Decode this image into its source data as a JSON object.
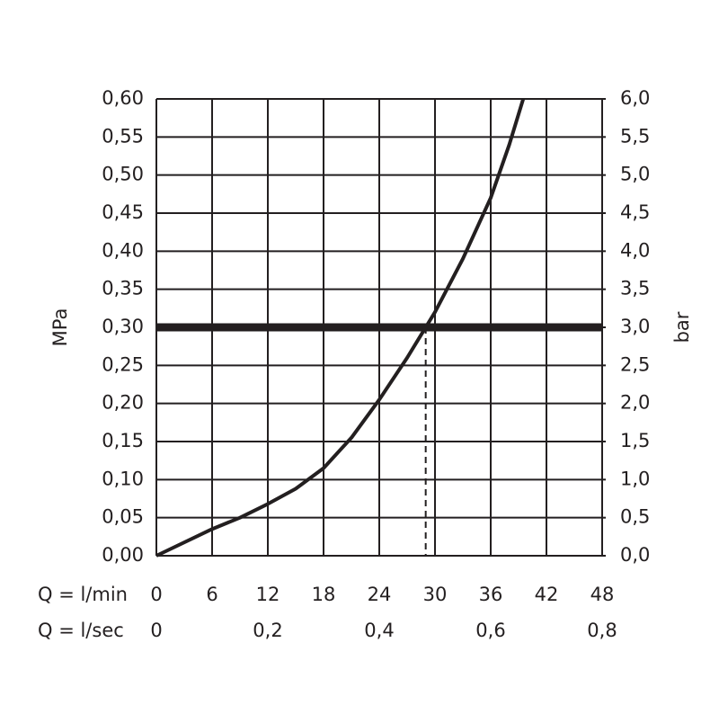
{
  "chart_data": {
    "type": "line",
    "x_row_label": "Q = l/min",
    "x2_row_label": "Q = l/sec",
    "ylabel": "MPa",
    "y2label": "bar",
    "x": [
      0,
      6,
      9,
      12,
      15,
      18,
      21,
      24,
      27,
      29,
      30,
      33,
      36,
      38,
      39.5
    ],
    "series": [
      {
        "color": "#231f20",
        "values": [
          0,
          0.035,
          0.05,
          0.068,
          0.088,
          0.115,
          0.155,
          0.205,
          0.26,
          0.3,
          0.32,
          0.39,
          0.47,
          0.54,
          0.6
        ]
      }
    ],
    "reference_value": 0.3,
    "reference_flow": 29,
    "xlim": [
      0,
      48
    ],
    "xticks": [
      0,
      6,
      12,
      18,
      24,
      30,
      36,
      42,
      48
    ],
    "x2lim": [
      0,
      0.8
    ],
    "x2ticks": [
      0,
      {
        "value": 0.2,
        "label": "0,2"
      },
      {
        "value": 0.4,
        "label": "0,4"
      },
      {
        "value": 0.6,
        "label": "0,6"
      },
      {
        "value": 0.8,
        "label": "0,8"
      }
    ],
    "ylim": [
      0,
      0.6
    ],
    "yticks": [
      {
        "value": 0,
        "label": "0,00"
      },
      {
        "value": 0.05,
        "label": "0,05"
      },
      {
        "value": 0.1,
        "label": "0,10"
      },
      {
        "value": 0.15,
        "label": "0,15"
      },
      {
        "value": 0.2,
        "label": "0,20"
      },
      {
        "value": 0.25,
        "label": "0,25"
      },
      {
        "value": 0.3,
        "label": "0,30"
      },
      {
        "value": 0.35,
        "label": "0,35"
      },
      {
        "value": 0.4,
        "label": "0,40"
      },
      {
        "value": 0.45,
        "label": "0,45"
      },
      {
        "value": 0.5,
        "label": "0,50"
      },
      {
        "value": 0.55,
        "label": "0,55"
      },
      {
        "value": 0.6,
        "label": "0,60"
      }
    ],
    "y2lim": [
      0,
      6
    ],
    "y2ticks": [
      {
        "value": 0,
        "label": "0,0"
      },
      {
        "value": 0.5,
        "label": "0,5"
      },
      {
        "value": 1,
        "label": "1,0"
      },
      {
        "value": 1.5,
        "label": "1,5"
      },
      {
        "value": 2,
        "label": "2,0"
      },
      {
        "value": 2.5,
        "label": "2,5"
      },
      {
        "value": 3,
        "label": "3,0"
      },
      {
        "value": 3.5,
        "label": "3,5"
      },
      {
        "value": 4,
        "label": "4,0"
      },
      {
        "value": 4.5,
        "label": "4,5"
      },
      {
        "value": 5,
        "label": "5,0"
      },
      {
        "value": 5.5,
        "label": "5,5"
      },
      {
        "value": 6,
        "label": "6,0"
      }
    ],
    "grid": true
  }
}
